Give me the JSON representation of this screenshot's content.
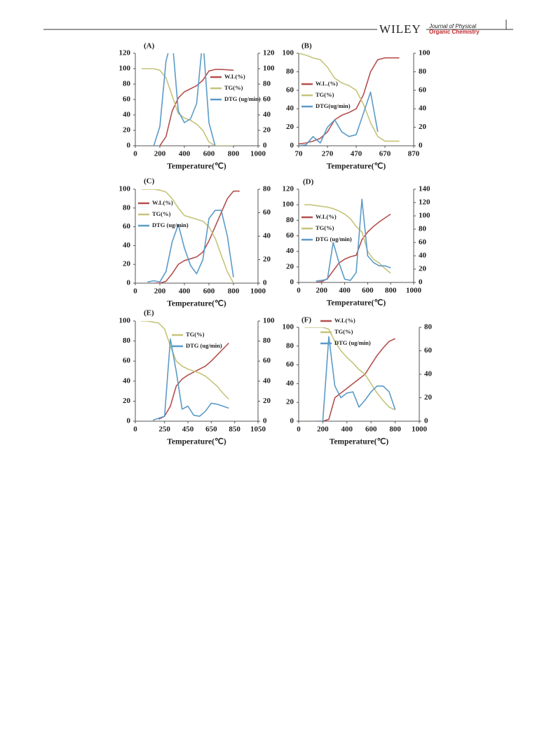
{
  "header": {
    "brand": "WILEY",
    "journal_line1": "Journal of Physical",
    "journal_line2": "Organic Chemistry"
  },
  "chart_data": [
    {
      "type": "line",
      "label": "(A)",
      "x_label": "Temperature(℃)",
      "x": [
        50,
        100,
        150,
        200,
        250,
        300,
        350,
        400,
        450,
        500,
        550,
        600,
        650,
        700,
        800
      ],
      "xlim": [
        0,
        1000
      ],
      "xticks": [
        0,
        200,
        400,
        600,
        800,
        1000
      ],
      "ylim": [
        0,
        120
      ],
      "yticks": [
        0,
        20,
        40,
        60,
        80,
        100,
        120
      ],
      "y2lim": [
        0,
        120
      ],
      "y2ticks": [
        0,
        20,
        40,
        60,
        80,
        100,
        120
      ],
      "series": [
        {
          "name": "W.L(%)",
          "color": "#b5504d",
          "values": [
            null,
            null,
            null,
            0,
            12,
            45,
            62,
            70,
            74,
            78,
            85,
            97,
            99,
            99,
            98
          ]
        },
        {
          "name": "TG(%)",
          "color": "#c6c47a",
          "values": [
            100,
            100,
            100,
            98,
            88,
            65,
            42,
            36,
            33,
            28,
            20,
            5,
            0,
            0,
            0
          ]
        },
        {
          "name": "DTG (ug/min)",
          "color": "#5b9bc8",
          "axis": "y2",
          "values": [
            null,
            null,
            0,
            25,
            110,
            140,
            45,
            30,
            35,
            55,
            140,
            30,
            0,
            null,
            null
          ]
        }
      ]
    },
    {
      "type": "line",
      "label": "(B)",
      "x_label": "Temperature(℃)",
      "x": [
        70,
        120,
        170,
        220,
        270,
        320,
        370,
        420,
        470,
        520,
        570,
        620,
        670,
        770
      ],
      "xlim": [
        70,
        870
      ],
      "xticks": [
        70,
        270,
        470,
        670,
        870
      ],
      "ylim": [
        0,
        100
      ],
      "yticks": [
        0,
        20,
        40,
        60,
        80,
        100
      ],
      "y2lim": [
        0,
        100
      ],
      "y2ticks": [
        0,
        20,
        40,
        60,
        80,
        100
      ],
      "series": [
        {
          "name": "W.L.(%)",
          "color": "#b5504d",
          "values": [
            2,
            3,
            5,
            8,
            15,
            28,
            33,
            36,
            40,
            55,
            80,
            93,
            95,
            95
          ]
        },
        {
          "name": "TG(%)",
          "color": "#c6c47a",
          "values": [
            100,
            98,
            95,
            93,
            85,
            73,
            68,
            65,
            60,
            45,
            25,
            10,
            5,
            5
          ]
        },
        {
          "name": "DTG(ug/min)",
          "color": "#5b9bc8",
          "axis": "y2",
          "values": [
            0,
            1,
            10,
            3,
            20,
            28,
            15,
            10,
            12,
            35,
            58,
            15,
            null,
            null
          ]
        }
      ]
    },
    {
      "type": "line",
      "label": "(C)",
      "x_label": "Temperature(℃)",
      "x": [
        50,
        100,
        150,
        200,
        250,
        300,
        350,
        400,
        450,
        500,
        550,
        600,
        650,
        700,
        750,
        800,
        850
      ],
      "xlim": [
        0,
        1000
      ],
      "xticks": [
        0,
        200,
        400,
        600,
        800,
        1000
      ],
      "ylim": [
        0,
        100
      ],
      "yticks": [
        0,
        20,
        40,
        60,
        80,
        100
      ],
      "y2lim": [
        0,
        80
      ],
      "y2ticks": [
        0,
        20,
        40,
        60,
        80
      ],
      "series": [
        {
          "name": "W.L(%)",
          "color": "#b5504d",
          "values": [
            null,
            null,
            0,
            0,
            2,
            10,
            20,
            24,
            26,
            28,
            33,
            45,
            60,
            75,
            90,
            98,
            98
          ]
        },
        {
          "name": "TG(%)",
          "color": "#c6c47a",
          "values": [
            100,
            100,
            100,
            99,
            97,
            90,
            80,
            72,
            70,
            68,
            66,
            60,
            48,
            30,
            12,
            0,
            null
          ]
        },
        {
          "name": "DTG (ug/min)",
          "color": "#5b9bc8",
          "axis": "y2",
          "values": [
            null,
            1,
            2,
            1,
            10,
            35,
            50,
            30,
            15,
            8,
            20,
            55,
            62,
            62,
            40,
            5,
            null
          ]
        }
      ]
    },
    {
      "type": "line",
      "label": "(D)",
      "x_label": "Temperature(℃)",
      "x": [
        50,
        100,
        150,
        200,
        250,
        300,
        350,
        400,
        450,
        500,
        550,
        600,
        650,
        700,
        750,
        800
      ],
      "xlim": [
        0,
        1000
      ],
      "xticks": [
        0,
        200,
        400,
        600,
        800,
        1000
      ],
      "ylim": [
        0,
        120
      ],
      "yticks": [
        0,
        20,
        40,
        60,
        80,
        100,
        120
      ],
      "y2lim": [
        0,
        140
      ],
      "y2ticks": [
        0,
        20,
        40,
        60,
        80,
        100,
        120,
        140
      ],
      "series": [
        {
          "name": "W.L(%)",
          "color": "#b5504d",
          "values": [
            null,
            null,
            0,
            1,
            5,
            15,
            25,
            30,
            33,
            35,
            55,
            65,
            72,
            78,
            83,
            88
          ]
        },
        {
          "name": "TG(%)",
          "color": "#c6c47a",
          "values": [
            100,
            100,
            99,
            98,
            97,
            95,
            92,
            88,
            82,
            72,
            65,
            40,
            30,
            25,
            18,
            12
          ]
        },
        {
          "name": "DTG (ug/min)",
          "color": "#5b9bc8",
          "axis": "y2",
          "values": [
            null,
            null,
            2,
            3,
            5,
            60,
            30,
            5,
            3,
            15,
            125,
            40,
            30,
            25,
            25,
            22
          ]
        }
      ]
    },
    {
      "type": "line",
      "label": "(E)",
      "x_label": "Temperature(℃)",
      "x": [
        50,
        100,
        150,
        200,
        250,
        300,
        350,
        400,
        450,
        500,
        550,
        600,
        650,
        700,
        750,
        800
      ],
      "xlim": [
        0,
        1050
      ],
      "xticks": [
        0,
        250,
        450,
        650,
        850,
        1050
      ],
      "ylim": [
        0,
        100
      ],
      "yticks": [
        0,
        20,
        40,
        60,
        80,
        100
      ],
      "y2lim": [
        0,
        100
      ],
      "y2ticks": [
        0,
        20,
        40,
        60,
        80,
        100
      ],
      "series": [
        {
          "color": "#b5504d",
          "values": [
            null,
            null,
            null,
            2,
            5,
            15,
            35,
            42,
            46,
            49,
            52,
            55,
            60,
            66,
            72,
            78
          ]
        },
        {
          "name": "TG(%)",
          "color": "#c6c47a",
          "values": [
            100,
            100,
            99,
            98,
            92,
            75,
            60,
            55,
            52,
            50,
            48,
            45,
            40,
            35,
            28,
            22
          ]
        },
        {
          "name": "DTG (ug/min)",
          "color": "#5b9bc8",
          "axis": "y2",
          "values": [
            null,
            null,
            1,
            3,
            5,
            82,
            50,
            12,
            15,
            6,
            5,
            10,
            18,
            17,
            15,
            13
          ]
        }
      ]
    },
    {
      "type": "line",
      "label": "(F)",
      "x_label": "Temperature(℃)",
      "x": [
        50,
        100,
        150,
        200,
        250,
        300,
        350,
        400,
        450,
        500,
        550,
        600,
        650,
        700,
        750,
        800
      ],
      "xlim": [
        0,
        1000
      ],
      "xticks": [
        0,
        200,
        400,
        600,
        800,
        1000
      ],
      "ylim": [
        0,
        100
      ],
      "yticks": [
        0,
        20,
        40,
        60,
        80,
        100
      ],
      "y2lim": [
        0,
        80
      ],
      "y2ticks": [
        0,
        20,
        40,
        60,
        80
      ],
      "series": [
        {
          "name": "W.L(%)",
          "color": "#b5504d",
          "values": [
            null,
            null,
            0,
            0,
            2,
            25,
            30,
            35,
            40,
            45,
            50,
            60,
            70,
            78,
            85,
            88
          ]
        },
        {
          "name": "TG(%)",
          "color": "#c6c47a",
          "values": [
            100,
            100,
            100,
            100,
            98,
            85,
            75,
            68,
            62,
            55,
            50,
            40,
            30,
            22,
            15,
            12
          ]
        },
        {
          "name": "DTG (ug/min)",
          "color": "#5b9bc8",
          "axis": "y2",
          "values": [
            null,
            null,
            0,
            0,
            72,
            30,
            20,
            24,
            25,
            12,
            18,
            25,
            30,
            30,
            25,
            10
          ]
        }
      ]
    }
  ]
}
